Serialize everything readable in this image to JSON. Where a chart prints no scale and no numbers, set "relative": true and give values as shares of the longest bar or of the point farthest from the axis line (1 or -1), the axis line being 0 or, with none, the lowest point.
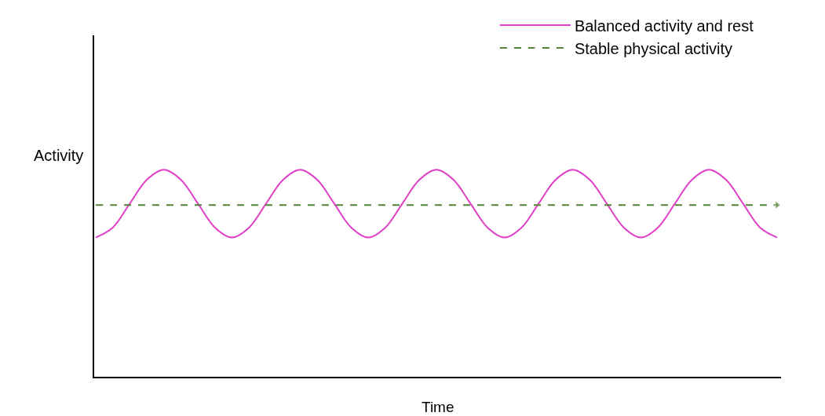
{
  "chart_data": {
    "type": "line",
    "relative": true,
    "xlabel": "Time",
    "ylabel": "Activity",
    "legend": "top right",
    "categories": [
      null,
      null,
      null,
      null,
      null,
      null,
      null,
      null,
      null,
      null,
      null,
      null,
      null,
      null,
      null,
      null,
      null,
      null,
      null,
      null,
      null,
      null,
      null,
      null,
      null,
      null,
      null,
      null,
      null,
      null,
      null,
      null,
      null,
      null,
      null,
      null,
      null,
      null,
      null,
      null,
      null
    ],
    "series": [
      {
        "name": "Balanced activity and rest",
        "color": "#e040c8",
        "line_style": "solid",
        "values": [
          0.673,
          0.721,
          0.837,
          0.952,
          1.0,
          0.952,
          0.837,
          0.721,
          0.673,
          0.721,
          0.837,
          0.952,
          1.0,
          0.952,
          0.837,
          0.721,
          0.673,
          0.721,
          0.837,
          0.952,
          1.0,
          0.952,
          0.837,
          0.721,
          0.673,
          0.721,
          0.837,
          0.952,
          1.0,
          0.952,
          0.837,
          0.721,
          0.673,
          0.721,
          0.837,
          0.952,
          1.0,
          0.952,
          0.837,
          0.721,
          0.673
        ]
      },
      {
        "name": "Stable physical activity",
        "color": "#538135",
        "line_style": "dashed",
        "values": [
          0.83,
          0.83,
          0.83,
          0.83,
          0.83,
          0.83,
          0.83,
          0.83,
          0.83,
          0.83,
          0.83,
          0.83,
          0.83,
          0.83,
          0.83,
          0.83,
          0.83,
          0.83,
          0.83,
          0.83,
          0.83,
          0.83,
          0.83,
          0.83,
          0.83,
          0.83,
          0.83,
          0.83,
          0.83,
          0.83,
          0.83,
          0.83,
          0.83,
          0.83,
          0.83,
          0.83,
          0.83,
          0.83,
          0.83,
          0.83,
          0.83
        ]
      }
    ]
  }
}
